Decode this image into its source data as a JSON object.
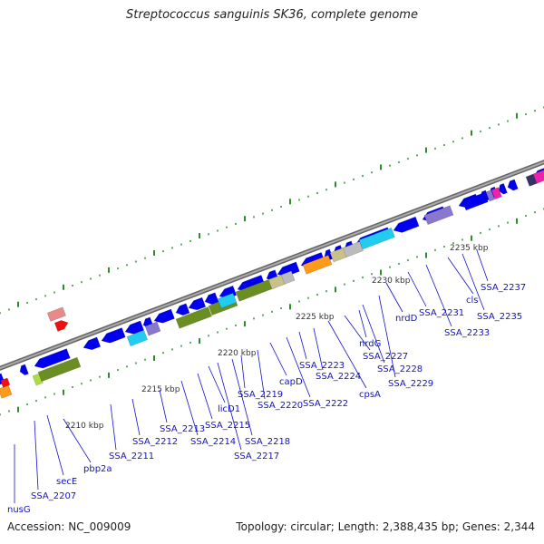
{
  "title": "Streptococcus sanguinis SK36, complete genome",
  "footer": {
    "accession": "Accession: NC_009009",
    "topology": "Topology: circular; Length: 2,388,435 bp; Genes: 2,344"
  },
  "ruler_ticks": [
    "2210 kbp",
    "2215 kbp",
    "2220 kbp",
    "2225 kbp",
    "2230 kbp",
    "2235 kbp"
  ],
  "gene_labels": [
    "nusG",
    "SSA_2207",
    "secE",
    "pbp2a",
    "SSA_2211",
    "SSA_2212",
    "SSA_2213",
    "SSA_2214",
    "SSA_2215",
    "licD1",
    "SSA_2217",
    "SSA_2218",
    "SSA_2219",
    "SSA_2220",
    "capD",
    "SSA_2222",
    "SSA_2223",
    "SSA_2224",
    "cpsA",
    "SSA_2227",
    "nrdG",
    "SSA_2228",
    "SSA_2229",
    "nrdD",
    "SSA_2231",
    "SSA_2233",
    "cls",
    "SSA_2235",
    "SSA_2237"
  ],
  "colors": {
    "gene_forward": "#0000ee",
    "backbone": "#888888",
    "cog_green": "#6b8e23",
    "cog_cyan": "#22ccee",
    "cog_orange": "#ff9a1a",
    "cog_purple": "#8877cc",
    "cog_khaki": "#c8c28a",
    "cog_lightgray": "#bbbbbb",
    "cog_lightgreen": "#aadd44",
    "rna_pink": "#e88a8a",
    "rna_red": "#ee1111",
    "cog_magenta": "#ee22aa",
    "tick_green": "#2e8b2e",
    "label_blue": "#1111cc"
  }
}
